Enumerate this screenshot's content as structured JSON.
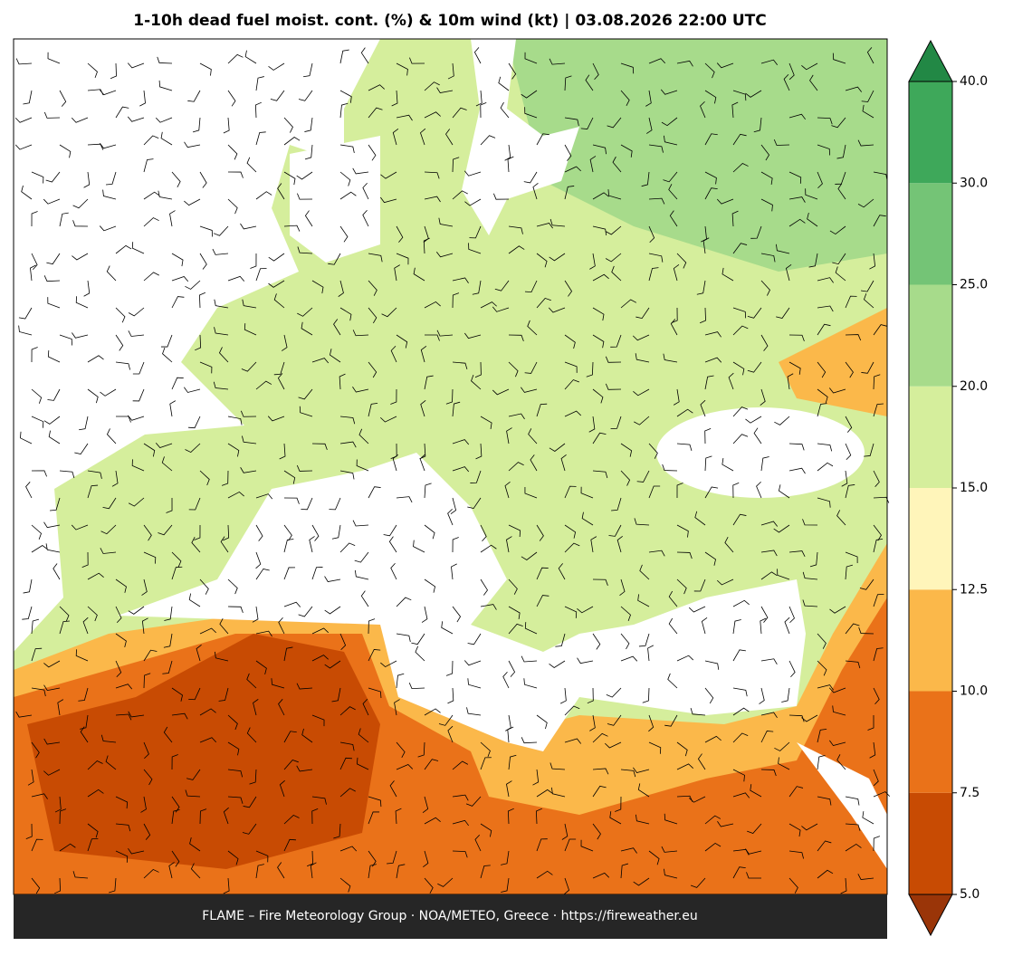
{
  "title": "1-10h dead fuel moist. cont. (%) & 10m wind (kt)  |  03.08.2026 22:00 UTC",
  "footer": "FLAME – Fire Meteorology Group · NOA/METEO, Greece · https://fireweather.eu",
  "colorbar": {
    "ticks": [
      {
        "value": 5,
        "label": "5.0"
      },
      {
        "value": 7.5,
        "label": "7.5"
      },
      {
        "value": 10,
        "label": "10.0"
      },
      {
        "value": 12.5,
        "label": "12.5"
      },
      {
        "value": 15,
        "label": "15.0"
      },
      {
        "value": 20,
        "label": "20.0"
      },
      {
        "value": 25,
        "label": "25.0"
      },
      {
        "value": 30,
        "label": "30.0"
      },
      {
        "value": 40,
        "label": "40.0"
      }
    ],
    "colors": [
      "#c84b03",
      "#ea7219",
      "#fbb84a",
      "#fff5ba",
      "#d5ee9c",
      "#a7db8b",
      "#74c476",
      "#3ea85a"
    ],
    "under_color": "#9a3508",
    "over_color": "#228845"
  }
}
